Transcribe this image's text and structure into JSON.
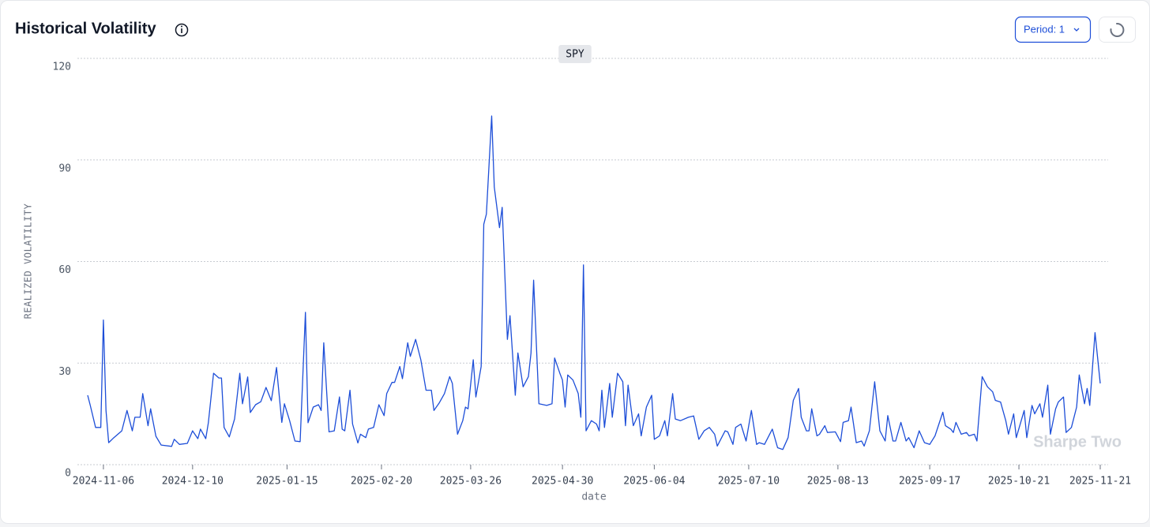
{
  "ui": {
    "period_label": "Period: 1"
  },
  "chart_data": {
    "type": "line",
    "title": "Historical Volatility",
    "xlabel": "date",
    "ylabel": "REALIZED VOLATILITY",
    "watermark": "Sharpe Two",
    "legend": "top-center",
    "grid": true,
    "ylim": [
      0,
      120
    ],
    "yticks": [
      0,
      30,
      60,
      90,
      120
    ],
    "xlim": [
      "2024-10-31",
      "2025-11-21"
    ],
    "xticks": [
      "2024-11-06",
      "2024-12-10",
      "2025-01-15",
      "2025-02-20",
      "2025-03-26",
      "2025-04-30",
      "2025-06-04",
      "2025-07-10",
      "2025-08-13",
      "2025-09-17",
      "2025-10-21",
      "2025-11-21"
    ],
    "x": [
      "2024-10-31",
      "2024-11-01",
      "2024-11-03",
      "2024-11-05",
      "2024-11-06",
      "2024-11-07",
      "2024-11-08",
      "2024-11-10",
      "2024-11-13",
      "2024-11-15",
      "2024-11-17",
      "2024-11-18",
      "2024-11-20",
      "2024-11-21",
      "2024-11-23",
      "2024-11-24",
      "2024-11-26",
      "2024-11-28",
      "2024-12-02",
      "2024-12-03",
      "2024-12-05",
      "2024-12-08",
      "2024-12-10",
      "2024-12-12",
      "2024-12-13",
      "2024-12-15",
      "2024-12-16",
      "2024-12-18",
      "2024-12-20",
      "2024-12-21",
      "2024-12-22",
      "2024-12-24",
      "2024-12-26",
      "2024-12-28",
      "2024-12-29",
      "2024-12-31",
      "2025-01-01",
      "2025-01-03",
      "2025-01-05",
      "2025-01-07",
      "2025-01-09",
      "2025-01-11",
      "2025-01-13",
      "2025-01-14",
      "2025-01-16",
      "2025-01-18",
      "2025-01-20",
      "2025-01-22",
      "2025-01-23",
      "2025-01-25",
      "2025-01-27",
      "2025-01-28",
      "2025-01-29",
      "2025-01-31",
      "2025-02-02",
      "2025-02-04",
      "2025-02-05",
      "2025-02-06",
      "2025-02-08",
      "2025-02-09",
      "2025-02-11",
      "2025-02-12",
      "2025-02-14",
      "2025-02-15",
      "2025-02-17",
      "2025-02-19",
      "2025-02-21",
      "2025-02-22",
      "2025-02-24",
      "2025-02-25",
      "2025-02-27",
      "2025-02-28",
      "2025-03-02",
      "2025-03-03",
      "2025-03-05",
      "2025-03-07",
      "2025-03-09",
      "2025-03-11",
      "2025-03-12",
      "2025-03-14",
      "2025-03-16",
      "2025-03-18",
      "2025-03-19",
      "2025-03-21",
      "2025-03-23",
      "2025-03-24",
      "2025-03-25",
      "2025-03-27",
      "2025-03-28",
      "2025-03-30",
      "2025-03-31",
      "2025-04-01",
      "2025-04-03",
      "2025-04-04",
      "2025-04-06",
      "2025-04-07",
      "2025-04-09",
      "2025-04-10",
      "2025-04-12",
      "2025-04-13",
      "2025-04-15",
      "2025-04-17",
      "2025-04-18",
      "2025-04-19",
      "2025-04-21",
      "2025-04-24",
      "2025-04-26",
      "2025-04-27",
      "2025-04-29",
      "2025-04-30",
      "2025-05-01",
      "2025-05-02",
      "2025-05-04",
      "2025-05-06",
      "2025-05-07",
      "2025-05-08",
      "2025-05-09",
      "2025-05-11",
      "2025-05-13",
      "2025-05-14",
      "2025-05-15",
      "2025-05-16",
      "2025-05-18",
      "2025-05-19",
      "2025-05-21",
      "2025-05-23",
      "2025-05-24",
      "2025-05-25",
      "2025-05-27",
      "2025-05-29",
      "2025-05-30",
      "2025-06-01",
      "2025-06-03",
      "2025-06-04",
      "2025-06-06",
      "2025-06-08",
      "2025-06-09",
      "2025-06-11",
      "2025-06-12",
      "2025-06-14",
      "2025-06-17",
      "2025-06-19",
      "2025-06-21",
      "2025-06-23",
      "2025-06-25",
      "2025-06-27",
      "2025-06-28",
      "2025-07-01",
      "2025-07-02",
      "2025-07-04",
      "2025-07-05",
      "2025-07-07",
      "2025-07-09",
      "2025-07-11",
      "2025-07-13",
      "2025-07-14",
      "2025-07-16",
      "2025-07-19",
      "2025-07-21",
      "2025-07-23",
      "2025-07-25",
      "2025-07-27",
      "2025-07-29",
      "2025-07-30",
      "2025-08-01",
      "2025-08-02",
      "2025-08-03",
      "2025-08-05",
      "2025-08-06",
      "2025-08-08",
      "2025-08-09",
      "2025-08-12",
      "2025-08-14",
      "2025-08-15",
      "2025-08-17",
      "2025-08-18",
      "2025-08-20",
      "2025-08-22",
      "2025-08-23",
      "2025-08-25",
      "2025-08-27",
      "2025-08-29",
      "2025-08-31",
      "2025-09-01",
      "2025-09-03",
      "2025-09-04",
      "2025-09-06",
      "2025-09-08",
      "2025-09-09",
      "2025-09-11",
      "2025-09-13",
      "2025-09-15",
      "2025-09-17",
      "2025-09-19",
      "2025-09-22",
      "2025-09-23",
      "2025-09-25",
      "2025-09-26",
      "2025-09-27",
      "2025-09-29",
      "2025-10-01",
      "2025-10-02",
      "2025-10-04",
      "2025-10-05",
      "2025-10-07",
      "2025-10-09",
      "2025-10-11",
      "2025-10-12",
      "2025-10-14",
      "2025-10-16",
      "2025-10-17",
      "2025-10-19",
      "2025-10-20",
      "2025-10-23",
      "2025-10-24",
      "2025-10-26",
      "2025-10-27",
      "2025-10-29",
      "2025-10-30",
      "2025-11-01",
      "2025-11-02",
      "2025-11-04",
      "2025-11-05",
      "2025-11-07",
      "2025-11-08",
      "2025-11-10",
      "2025-11-12",
      "2025-11-13",
      "2025-11-15",
      "2025-11-16",
      "2025-11-17",
      "2025-11-19",
      "2025-11-21"
    ],
    "series": [
      {
        "name": "SPY",
        "color": "#1d4ed8",
        "values": [
          20.5,
          17.5,
          11,
          11,
          42.7,
          16,
          6.5,
          8,
          10,
          16,
          10,
          14,
          14,
          21,
          11.5,
          16.5,
          8.4,
          5.8,
          5.4,
          7.5,
          6,
          6.3,
          10,
          7.7,
          10.5,
          7.7,
          12.4,
          27,
          25.6,
          25.6,
          11,
          8.2,
          13.5,
          27,
          18,
          25.9,
          15.4,
          17.7,
          18.6,
          22.8,
          18.9,
          28.7,
          12.5,
          18,
          13,
          7,
          6.8,
          45,
          12.4,
          17,
          17.7,
          16,
          36,
          9.7,
          10,
          20,
          10.5,
          10,
          22,
          12,
          6.4,
          9,
          8,
          10.5,
          11,
          17.7,
          14.5,
          21,
          24.3,
          24.3,
          29,
          25.4,
          36,
          32,
          37,
          31,
          22,
          22,
          16,
          18.2,
          21,
          26,
          24,
          9,
          13,
          17,
          16.5,
          31,
          20,
          29,
          71,
          74,
          103,
          82,
          70,
          76,
          37,
          44,
          20.5,
          33,
          23,
          26,
          33,
          54.5,
          18,
          17.5,
          18,
          31.5,
          27,
          25,
          17,
          26.5,
          25,
          21,
          14,
          59,
          10,
          13,
          12,
          10,
          22,
          11,
          24,
          14,
          27,
          24.5,
          11.5,
          23.5,
          11.5,
          15,
          8.5,
          17,
          20.5,
          7.5,
          8.5,
          13,
          8.5,
          21,
          13.5,
          13,
          14,
          14.4,
          7.5,
          10,
          11,
          9,
          5.5,
          10,
          9.7,
          6,
          11,
          12,
          7,
          16,
          6,
          6.5,
          6,
          10.5,
          5,
          4.5,
          8,
          19,
          22.5,
          14,
          10,
          10,
          16.5,
          8.5,
          9,
          11.5,
          9.5,
          9.7,
          6.8,
          12.5,
          13,
          17,
          6.5,
          7,
          5.5,
          10,
          24.5,
          10,
          7,
          14.5,
          7,
          7,
          12.5,
          7,
          8,
          5,
          10,
          6.5,
          6,
          8.5,
          15.5,
          11.5,
          10.5,
          9.5,
          12.5,
          9,
          9.5,
          8.5,
          9,
          7,
          26,
          23,
          21.5,
          19,
          18.5,
          13,
          9,
          15,
          8,
          16,
          8,
          17.5,
          15,
          18,
          14,
          23.5,
          9,
          16.5,
          18.5,
          20,
          9.5,
          11,
          17,
          26.5,
          18,
          22.5,
          17.5,
          39,
          24
        ]
      }
    ]
  }
}
